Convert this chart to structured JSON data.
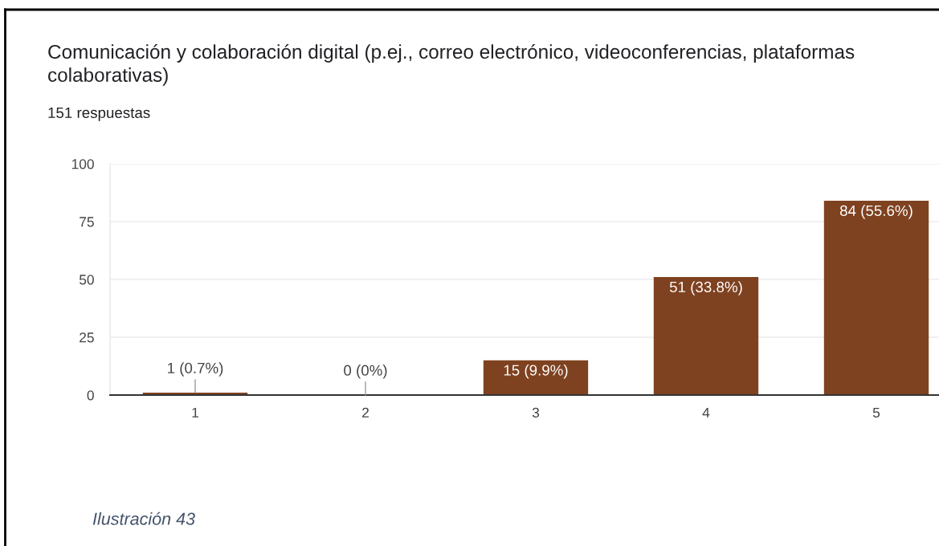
{
  "chart_data": {
    "type": "bar",
    "title": "Comunicación y colaboración digital (p.ej., correo electrónico, videoconferencias, plataformas colaborativas)",
    "subtitle": "151 respuestas",
    "annotations": [
      "Ilustración 43"
    ],
    "categories": [
      "1",
      "2",
      "3",
      "4",
      "5"
    ],
    "values": [
      1,
      0,
      15,
      51,
      84
    ],
    "color": "#7f4220",
    "value_labels": [
      "1 (0.7%)",
      "0 (0%)",
      "15 (9.9%)",
      "51 (33.8%)",
      "84 (55.6%)"
    ],
    "ylim": [
      0,
      100
    ],
    "yticks": [
      0,
      25,
      50,
      75,
      100
    ],
    "grid": "y"
  }
}
